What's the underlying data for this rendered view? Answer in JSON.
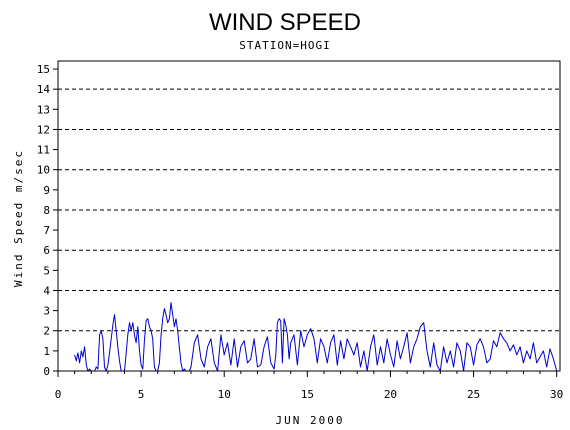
{
  "chart_data": {
    "type": "line",
    "title": "WIND SPEED",
    "subtitle": "STATION=HOGI",
    "xlabel": "JUN 2000",
    "ylabel": "Wind Speed m/sec",
    "xlim": [
      0,
      30.2
    ],
    "ylim": [
      0,
      15.4
    ],
    "xticks": [
      0,
      5,
      10,
      15,
      20,
      25,
      30
    ],
    "yticks": [
      0,
      1,
      2,
      3,
      4,
      5,
      6,
      7,
      8,
      9,
      10,
      11,
      12,
      13,
      14,
      15
    ],
    "grid_y_dashed": [
      2,
      4,
      6,
      8,
      10,
      12,
      14
    ],
    "series_color": "#0000cc",
    "series": [
      {
        "x": [
          1.0,
          1.1,
          1.2,
          1.3,
          1.4,
          1.5,
          1.6,
          1.7,
          1.8,
          1.9,
          2.0,
          2.1,
          2.2,
          2.3,
          2.4,
          2.5,
          2.6,
          2.7,
          2.8,
          2.9,
          3.0,
          3.1,
          3.2,
          3.3,
          3.4,
          3.5,
          3.6,
          3.7,
          3.8,
          3.9,
          4.0,
          4.1,
          4.2,
          4.3,
          4.4,
          4.5,
          4.6,
          4.7,
          4.8,
          4.9,
          5.0,
          5.1,
          5.2,
          5.3,
          5.4,
          5.5,
          5.6,
          5.7,
          5.8,
          5.9,
          6.0,
          6.1,
          6.2,
          6.3,
          6.4,
          6.5,
          6.6,
          6.7,
          6.8,
          6.9,
          7.0,
          7.1,
          7.2,
          7.3,
          7.4,
          7.5,
          7.6,
          7.7,
          7.8,
          7.9,
          8.0,
          8.2,
          8.4,
          8.6,
          8.8,
          9.0,
          9.2,
          9.4,
          9.6,
          9.8,
          10.0,
          10.2,
          10.4,
          10.6,
          10.8,
          11.0,
          11.2,
          11.4,
          11.6,
          11.8,
          12.0,
          12.2,
          12.4,
          12.6,
          12.8,
          13.0,
          13.1,
          13.2,
          13.3,
          13.4,
          13.5,
          13.6,
          13.7,
          13.8,
          13.9,
          14.0,
          14.2,
          14.4,
          14.6,
          14.8,
          15.0,
          15.2,
          15.4,
          15.6,
          15.8,
          16.0,
          16.2,
          16.4,
          16.6,
          16.8,
          17.0,
          17.2,
          17.4,
          17.6,
          17.8,
          18.0,
          18.2,
          18.4,
          18.6,
          18.8,
          19.0,
          19.2,
          19.4,
          19.6,
          19.8,
          20.0,
          20.2,
          20.4,
          20.6,
          20.8,
          21.0,
          21.2,
          21.4,
          21.6,
          21.8,
          22.0,
          22.2,
          22.4,
          22.6,
          22.8,
          23.0,
          23.2,
          23.4,
          23.6,
          23.8,
          24.0,
          24.2,
          24.4,
          24.6,
          24.8,
          25.0,
          25.2,
          25.4,
          25.6,
          25.8,
          26.0,
          26.2,
          26.4,
          26.6,
          26.8,
          27.0,
          27.2,
          27.4,
          27.6,
          27.8,
          28.0,
          28.2,
          28.4,
          28.6,
          28.8,
          29.0,
          29.2,
          29.4,
          29.6,
          29.8,
          30.0
        ],
        "values": [
          0.8,
          0.5,
          0.9,
          0.4,
          1.0,
          0.7,
          1.2,
          0.3,
          0.0,
          0.1,
          0.0,
          0.0,
          0.0,
          0.2,
          0.1,
          1.8,
          2.0,
          1.6,
          0.2,
          0.0,
          0.3,
          0.9,
          1.6,
          2.3,
          2.8,
          2.0,
          1.2,
          0.5,
          0.0,
          0.0,
          0.0,
          0.9,
          1.8,
          2.4,
          2.0,
          2.4,
          1.8,
          1.4,
          2.2,
          1.0,
          0.3,
          0.1,
          1.5,
          2.5,
          2.6,
          2.2,
          2.0,
          1.6,
          0.2,
          0.0,
          0.0,
          0.4,
          1.8,
          2.6,
          3.1,
          2.8,
          2.4,
          2.6,
          3.4,
          2.8,
          2.2,
          2.6,
          2.0,
          1.2,
          0.4,
          0.0,
          0.1,
          0.0,
          0.0,
          0.0,
          0.2,
          1.4,
          1.8,
          0.6,
          0.2,
          1.2,
          1.6,
          0.4,
          0.0,
          1.8,
          0.8,
          1.4,
          0.3,
          1.6,
          0.2,
          1.2,
          1.5,
          0.4,
          0.6,
          1.6,
          0.2,
          0.3,
          1.2,
          1.7,
          0.4,
          0.1,
          0.8,
          2.4,
          2.6,
          2.5,
          0.4,
          2.6,
          2.3,
          1.8,
          0.6,
          1.4,
          1.8,
          0.3,
          2.0,
          1.2,
          1.8,
          2.1,
          1.6,
          0.4,
          1.6,
          1.2,
          0.4,
          1.4,
          1.8,
          0.3,
          1.5,
          0.6,
          1.6,
          1.2,
          0.8,
          1.4,
          0.2,
          1.0,
          0.0,
          1.2,
          1.8,
          0.3,
          1.2,
          0.4,
          1.6,
          0.8,
          0.2,
          1.5,
          0.6,
          1.2,
          1.9,
          0.4,
          1.2,
          1.6,
          2.2,
          2.4,
          1.0,
          0.2,
          1.4,
          0.3,
          0.0,
          1.2,
          0.4,
          1.0,
          0.2,
          1.4,
          1.0,
          0.0,
          1.4,
          1.2,
          0.3,
          1.3,
          1.6,
          1.2,
          0.4,
          0.6,
          1.5,
          1.2,
          1.9,
          1.6,
          1.4,
          1.0,
          1.3,
          0.8,
          1.2,
          0.4,
          1.0,
          0.6,
          1.4,
          0.4,
          0.7,
          1.0,
          0.2,
          1.1,
          0.6,
          0.0
        ]
      }
    ]
  }
}
